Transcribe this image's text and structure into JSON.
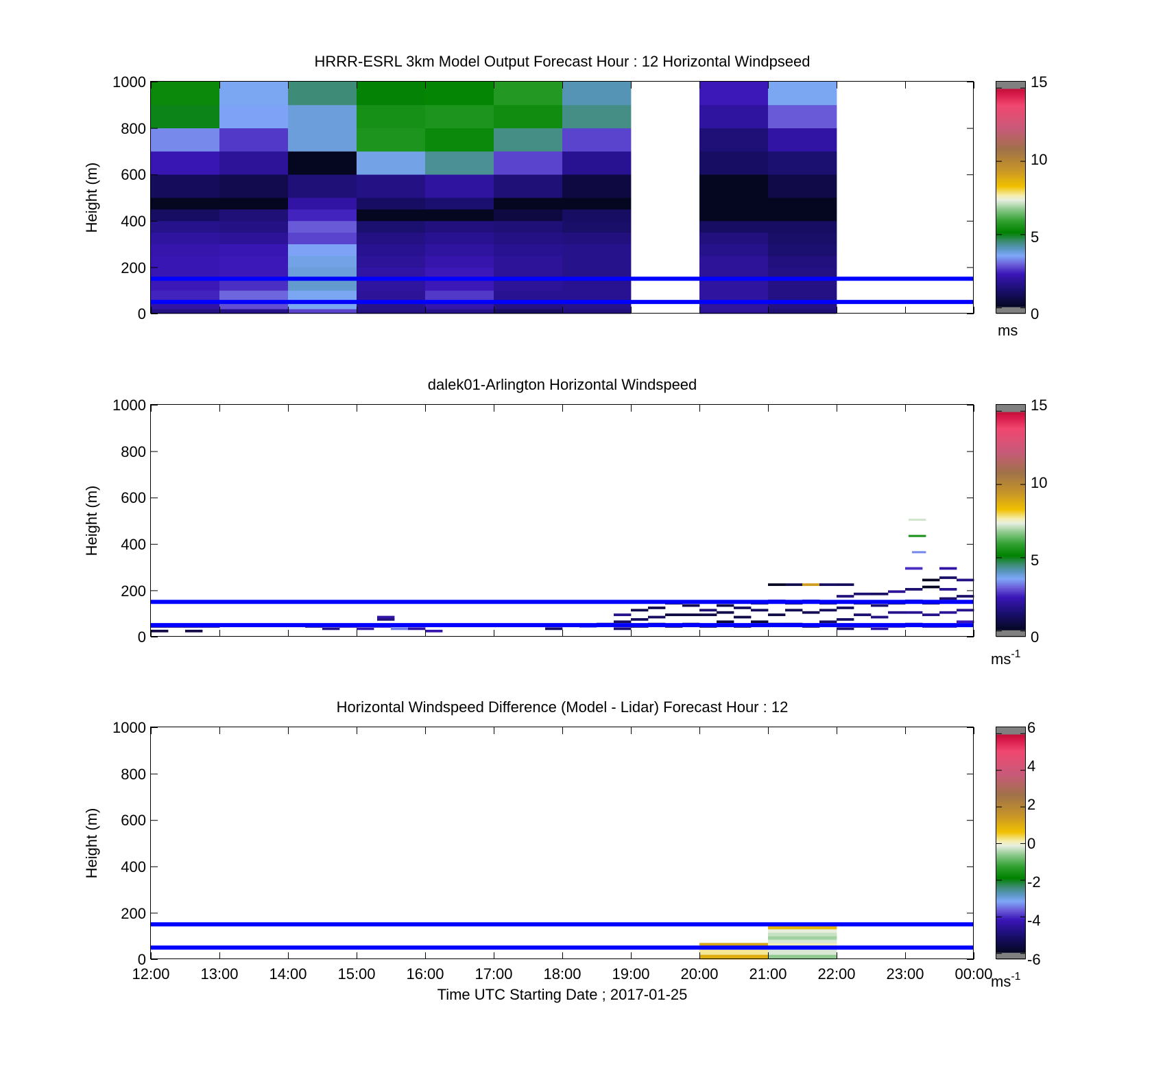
{
  "figure": {
    "xlabel": "Time UTC  Starting Date ; 2017-01-25",
    "x_ticks": [
      "12:00",
      "13:00",
      "14:00",
      "15:00",
      "16:00",
      "17:00",
      "18:00",
      "19:00",
      "20:00",
      "21:00",
      "22:00",
      "23:00",
      "00:00"
    ]
  },
  "chart_data": [
    {
      "type": "heatmap",
      "title": "HRRR-ESRL 3km Model Output   Forecast Hour : 12 Horizontal Windpseed",
      "ylabel": "Height (m)",
      "xlim": [
        12,
        24
      ],
      "ylim": [
        0,
        1000
      ],
      "y_ticks": [
        0,
        200,
        400,
        600,
        800,
        1000
      ],
      "colorbar": {
        "ticks": [
          0,
          5,
          10,
          15
        ],
        "range": [
          0,
          15
        ],
        "unit": "ms",
        "unit_sup": ""
      },
      "reference_heights_m": [
        150,
        50
      ],
      "reference_color": "#0000ff",
      "hours": [
        12,
        13,
        14,
        15,
        16,
        17,
        18,
        20,
        21
      ],
      "layer_bounds_m": [
        0,
        20,
        50,
        100,
        150,
        200,
        250,
        300,
        350,
        400,
        450,
        500,
        600,
        700,
        800,
        900,
        1000
      ],
      "columns": [
        [
          1.5,
          2.0,
          2.4,
          2.3,
          2.2,
          2.2,
          2.1,
          1.9,
          1.6,
          1.0,
          0.0,
          0.9,
          2.2,
          3.3,
          5.0,
          5.3
        ],
        [
          1.6,
          2.8,
          3.0,
          2.5,
          2.3,
          2.3,
          2.2,
          1.8,
          1.5,
          1.3,
          0.0,
          0.7,
          1.8,
          2.6,
          3.5,
          3.6
        ],
        [
          2.7,
          3.6,
          3.6,
          3.9,
          3.8,
          3.7,
          3.5,
          2.7,
          2.9,
          2.4,
          2.0,
          1.3,
          0.0,
          3.8,
          3.8,
          4.5
        ],
        [
          1.5,
          1.6,
          1.8,
          1.9,
          2.0,
          1.8,
          1.7,
          1.5,
          1.2,
          0.0,
          1.0,
          1.5,
          3.7,
          5.6,
          5.5,
          5.1
        ],
        [
          1.6,
          2.1,
          2.6,
          2.3,
          2.3,
          2.1,
          1.9,
          1.7,
          1.4,
          0.0,
          1.2,
          1.9,
          4.3,
          5.3,
          5.6,
          5.2
        ],
        [
          1.0,
          1.5,
          1.7,
          1.8,
          1.8,
          1.8,
          1.7,
          1.5,
          1.3,
          0.5,
          0.0,
          1.3,
          2.7,
          4.4,
          5.4,
          5.7
        ],
        [
          1.4,
          1.6,
          1.7,
          1.7,
          1.6,
          1.6,
          1.6,
          1.4,
          1.1,
          1.0,
          0.0,
          0.5,
          1.7,
          2.7,
          4.4,
          4.1
        ],
        [
          1.8,
          1.9,
          1.9,
          1.9,
          1.8,
          1.8,
          1.6,
          1.4,
          1.0,
          0.0,
          0.0,
          0.0,
          1.0,
          1.3,
          1.9,
          2.3
        ],
        [
          1.3,
          1.5,
          1.5,
          1.5,
          1.5,
          1.4,
          1.2,
          1.1,
          1.0,
          0.0,
          0.0,
          0.6,
          1.2,
          2.0,
          2.9,
          3.6
        ]
      ]
    },
    {
      "type": "heatmap",
      "title": "dalek01-Arlington  Horizontal Windspeed",
      "ylabel": "Height (m)",
      "xlim": [
        12,
        24
      ],
      "ylim": [
        0,
        1000
      ],
      "y_ticks": [
        0,
        200,
        400,
        600,
        800,
        1000
      ],
      "colorbar": {
        "ticks": [
          0,
          5,
          10,
          15
        ],
        "range": [
          0,
          15
        ],
        "unit": "ms",
        "unit_sup": "-1"
      },
      "reference_heights_m": [
        150,
        50
      ],
      "reference_color": "#0000ff",
      "cell_width_h": 0.25,
      "cell_height_m": 10,
      "cells": [
        [
          12.0,
          40,
          1.3
        ],
        [
          12.25,
          40,
          1.3
        ],
        [
          12.5,
          40,
          1.3
        ],
        [
          12.75,
          40,
          1.3
        ],
        [
          12.0,
          20,
          0.6
        ],
        [
          12.5,
          20,
          0.6
        ],
        [
          14.25,
          40,
          1.4
        ],
        [
          14.5,
          30,
          1.6
        ],
        [
          14.75,
          40,
          1.9
        ],
        [
          15.0,
          30,
          2.1
        ],
        [
          15.25,
          40,
          2.4
        ],
        [
          15.3,
          70,
          1.4
        ],
        [
          15.3,
          80,
          2.0
        ],
        [
          15.5,
          30,
          3.2
        ],
        [
          15.75,
          30,
          2.0
        ],
        [
          16.0,
          20,
          2.1
        ],
        [
          17.75,
          30,
          1.0
        ],
        [
          18.25,
          40,
          3.2
        ],
        [
          18.5,
          50,
          1.5
        ],
        [
          18.75,
          60,
          1.0
        ],
        [
          18.75,
          30,
          1.2
        ],
        [
          18.75,
          90,
          1.6
        ],
        [
          19.0,
          40,
          0.8
        ],
        [
          19.0,
          70,
          0.9
        ],
        [
          19.0,
          110,
          0.7
        ],
        [
          19.25,
          50,
          0.6
        ],
        [
          19.25,
          80,
          1.0
        ],
        [
          19.25,
          120,
          0.7
        ],
        [
          19.5,
          40,
          0.7
        ],
        [
          19.5,
          90,
          0.5
        ],
        [
          19.5,
          140,
          0.8
        ],
        [
          19.75,
          50,
          0.6
        ],
        [
          19.75,
          90,
          0.5
        ],
        [
          19.75,
          130,
          0.7
        ],
        [
          20.0,
          40,
          0.7
        ],
        [
          20.0,
          90,
          0.6
        ],
        [
          20.0,
          110,
          1.2
        ],
        [
          20.25,
          60,
          0.4
        ],
        [
          20.25,
          100,
          0.6
        ],
        [
          20.25,
          130,
          0.6
        ],
        [
          20.5,
          40,
          0.4
        ],
        [
          20.5,
          80,
          0.6
        ],
        [
          20.5,
          120,
          0.9
        ],
        [
          20.75,
          60,
          0.4
        ],
        [
          20.75,
          110,
          0.9
        ],
        [
          20.75,
          140,
          1.0
        ],
        [
          21.0,
          50,
          0.5
        ],
        [
          21.0,
          90,
          0.6
        ],
        [
          21.0,
          150,
          1.5
        ],
        [
          21.25,
          50,
          0.8
        ],
        [
          21.25,
          110,
          0.8
        ],
        [
          21.25,
          140,
          0.9
        ],
        [
          21.5,
          40,
          0.7
        ],
        [
          21.5,
          100,
          0.8
        ],
        [
          21.5,
          150,
          1.2
        ],
        [
          21.75,
          60,
          1.0
        ],
        [
          21.75,
          110,
          0.9
        ],
        [
          21.75,
          140,
          1.0
        ],
        [
          22.0,
          30,
          1.2
        ],
        [
          22.0,
          70,
          1.0
        ],
        [
          22.0,
          120,
          0.9
        ],
        [
          22.0,
          170,
          1.4
        ],
        [
          22.25,
          40,
          1.5
        ],
        [
          22.25,
          90,
          1.2
        ],
        [
          22.25,
          140,
          1.0
        ],
        [
          22.25,
          180,
          1.2
        ],
        [
          22.5,
          30,
          2.0
        ],
        [
          22.5,
          80,
          1.5
        ],
        [
          22.5,
          130,
          1.2
        ],
        [
          22.5,
          180,
          1.0
        ],
        [
          22.75,
          40,
          2.2
        ],
        [
          22.75,
          100,
          1.6
        ],
        [
          22.75,
          140,
          1.0
        ],
        [
          22.75,
          190,
          1.8
        ],
        [
          23.0,
          50,
          2.1
        ],
        [
          23.0,
          100,
          1.7
        ],
        [
          23.0,
          150,
          1.0
        ],
        [
          23.0,
          200,
          1.2
        ],
        [
          23.25,
          40,
          2.0
        ],
        [
          23.25,
          90,
          1.6
        ],
        [
          23.25,
          140,
          1.1
        ],
        [
          23.25,
          210,
          0.0
        ],
        [
          23.25,
          240,
          0.0
        ],
        [
          23.5,
          40,
          2.3
        ],
        [
          23.5,
          100,
          1.8
        ],
        [
          23.5,
          160,
          1.2
        ],
        [
          23.5,
          200,
          1.7
        ],
        [
          23.5,
          250,
          1.1
        ],
        [
          23.75,
          60,
          2.3
        ],
        [
          23.75,
          110,
          1.6
        ],
        [
          23.75,
          170,
          1.1
        ],
        [
          23.75,
          240,
          1.5
        ],
        [
          21.0,
          220,
          0.0
        ],
        [
          21.25,
          220,
          0.7
        ],
        [
          21.5,
          220,
          9.2
        ],
        [
          21.75,
          220,
          1.0
        ],
        [
          22.0,
          220,
          0.9
        ],
        [
          23.0,
          290,
          2.5
        ],
        [
          23.5,
          290,
          2.0
        ]
      ],
      "streaks": [
        [
          23.05,
          23.3,
          505,
          7.2
        ],
        [
          23.05,
          23.3,
          435,
          5.6
        ],
        [
          23.1,
          23.3,
          365,
          3.3
        ]
      ]
    },
    {
      "type": "heatmap",
      "title": "Horizontal Windspeed Difference (Model - Lidar) Forecast Hour : 12",
      "ylabel": "Height (m)",
      "xlim": [
        12,
        24
      ],
      "ylim": [
        0,
        1000
      ],
      "y_ticks": [
        0,
        200,
        400,
        600,
        800,
        1000
      ],
      "colorbar": {
        "ticks": [
          -6,
          -4,
          -2,
          0,
          2,
          4,
          6
        ],
        "range": [
          -6,
          6
        ],
        "unit": "ms",
        "unit_sup": "-1"
      },
      "reference_heights_m": [
        150,
        50
      ],
      "reference_color": "#0000ff",
      "cells": [
        [
          20,
          21,
          0,
          20,
          1.0
        ],
        [
          20,
          21,
          20,
          50,
          0.2
        ],
        [
          20,
          21,
          50,
          70,
          1.2
        ],
        [
          21,
          22,
          0,
          20,
          -0.6
        ],
        [
          21,
          22,
          20,
          50,
          -0.2
        ],
        [
          21,
          22,
          50,
          70,
          0.1
        ],
        [
          21,
          22,
          70,
          85,
          -0.2
        ],
        [
          21,
          22,
          85,
          100,
          -0.5
        ],
        [
          21,
          22,
          100,
          115,
          -0.3
        ],
        [
          21,
          22,
          115,
          130,
          -0.1
        ],
        [
          21,
          22,
          130,
          145,
          0.8
        ]
      ]
    }
  ]
}
